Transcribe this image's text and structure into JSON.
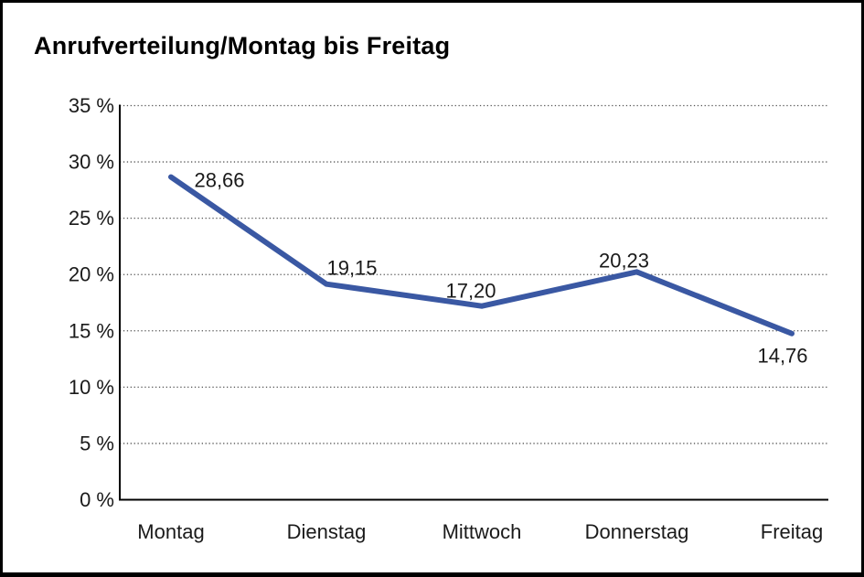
{
  "chart_data": {
    "type": "line",
    "title": "Anrufverteilung/Montag bis Freitag",
    "categories": [
      "Montag",
      "Dienstag",
      "Mittwoch",
      "Donnerstag",
      "Freitag"
    ],
    "series": [
      {
        "name": "Anrufverteilung",
        "values": [
          28.66,
          19.15,
          17.2,
          20.23,
          14.76
        ]
      }
    ],
    "data_labels": [
      "28,66",
      "19,15",
      "17,20",
      "20,23",
      "14,76"
    ],
    "xlabel": "",
    "ylabel": "",
    "ylim": [
      0,
      35
    ],
    "ytick_values": [
      0,
      5,
      10,
      15,
      20,
      25,
      30,
      35
    ],
    "ytick_labels": [
      "0 %",
      "5 %",
      "10 %",
      "15 %",
      "20 %",
      "25 %",
      "30 %",
      "35 %"
    ],
    "grid": "horizontal-dotted",
    "legend": "none",
    "colors": {
      "line": "#3A58A3",
      "axis": "#000000",
      "gridline": "#555555",
      "text": "#1a1a1a",
      "background": "#ffffff",
      "border": "#000000"
    }
  }
}
